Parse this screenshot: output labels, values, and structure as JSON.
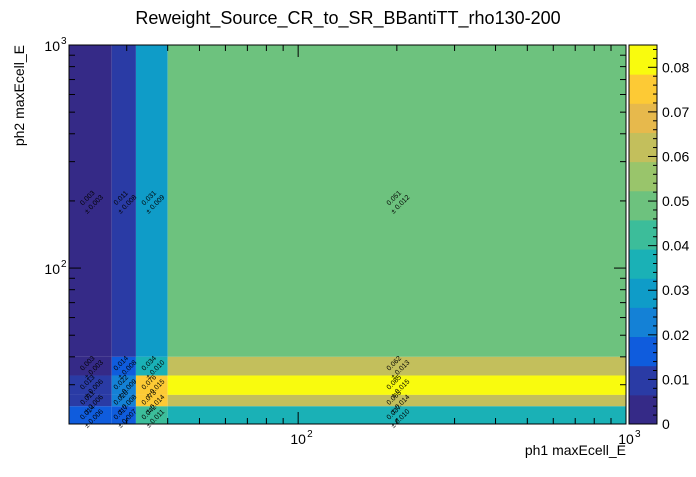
{
  "chart_data": {
    "type": "heatmap",
    "title": "Reweight_Source_CR_to_SR_BBantiTT_rho130-200",
    "xlabel": "ph1 maxEcell_E",
    "ylabel": "ph2 maxEcell_E",
    "x_scale": "log",
    "y_scale": "log",
    "xlim": [
      20,
      1000
    ],
    "ylim": [
      20,
      1000
    ],
    "x_major_ticks": [
      100,
      1000
    ],
    "x_major_tick_labels": [
      "10",
      "10"
    ],
    "x_major_tick_exponents": [
      "2",
      "3"
    ],
    "y_major_ticks": [
      100,
      1000
    ],
    "y_major_tick_labels": [
      "10",
      "10"
    ],
    "y_major_tick_exponents": [
      "2",
      "3"
    ],
    "x_bin_edges": [
      20,
      27,
      32,
      40,
      1000
    ],
    "y_bin_edges": [
      20,
      24,
      27,
      33,
      40,
      1000
    ],
    "zlim": [
      0,
      0.085
    ],
    "colorbar_ticks": [
      0,
      0.01,
      0.02,
      0.03,
      0.04,
      0.05,
      0.06,
      0.07,
      0.08
    ],
    "colorbar_tick_labels": [
      "0",
      "0.01",
      "0.02",
      "0.03",
      "0.04",
      "0.05",
      "0.06",
      "0.07",
      "0.08"
    ],
    "cells": [
      {
        "x": [
          20,
          27
        ],
        "y": [
          40,
          1000
        ],
        "value": 0.003,
        "label": "0.003",
        "error": "± 0.003"
      },
      {
        "x": [
          27,
          32
        ],
        "y": [
          40,
          1000
        ],
        "value": 0.011,
        "label": "0.011",
        "error": "± 0.008"
      },
      {
        "x": [
          32,
          40
        ],
        "y": [
          40,
          1000
        ],
        "value": 0.031,
        "label": "0.031",
        "error": "± 0.009"
      },
      {
        "x": [
          40,
          1000
        ],
        "y": [
          40,
          1000
        ],
        "value": 0.051,
        "label": "0.051",
        "error": "± 0.012"
      },
      {
        "x": [
          20,
          27
        ],
        "y": [
          33,
          40
        ],
        "value": 0.003,
        "label": "0.003",
        "error": "± 0.003"
      },
      {
        "x": [
          27,
          32
        ],
        "y": [
          33,
          40
        ],
        "value": 0.014,
        "label": "0.014",
        "error": "± 0.008"
      },
      {
        "x": [
          32,
          40
        ],
        "y": [
          33,
          40
        ],
        "value": 0.034,
        "label": "0.034",
        "error": "± 0.010"
      },
      {
        "x": [
          40,
          1000
        ],
        "y": [
          33,
          40
        ],
        "value": 0.062,
        "label": "0.062",
        "error": "± 0.013"
      },
      {
        "x": [
          20,
          27
        ],
        "y": [
          27,
          33
        ],
        "value": 0.013,
        "label": "0.013",
        "error": "± 0.006"
      },
      {
        "x": [
          27,
          32
        ],
        "y": [
          27,
          33
        ],
        "value": 0.022,
        "label": "0.022",
        "error": "± 0.009"
      },
      {
        "x": [
          32,
          40
        ],
        "y": [
          27,
          33
        ],
        "value": 0.076,
        "label": "0.076",
        "error": "± 0.015"
      },
      {
        "x": [
          40,
          1000
        ],
        "y": [
          27,
          33
        ],
        "value": 0.085,
        "label": "0.085",
        "error": "± 0.015"
      },
      {
        "x": [
          20,
          27
        ],
        "y": [
          24,
          27
        ],
        "value": 0.011,
        "label": "0.011",
        "error": "± 0.006"
      },
      {
        "x": [
          27,
          32
        ],
        "y": [
          24,
          27
        ],
        "value": 0.02,
        "label": "0.020",
        "error": "± 0.008"
      },
      {
        "x": [
          32,
          40
        ],
        "y": [
          24,
          27
        ],
        "value": 0.073,
        "label": "0.073",
        "error": "± 0.014"
      },
      {
        "x": [
          40,
          1000
        ],
        "y": [
          24,
          27
        ],
        "value": 0.065,
        "label": "0.065",
        "error": "± 0.014"
      },
      {
        "x": [
          20,
          27
        ],
        "y": [
          20,
          24
        ],
        "value": 0.014,
        "label": "0.014",
        "error": "± 0.006"
      },
      {
        "x": [
          27,
          32
        ],
        "y": [
          20,
          24
        ],
        "value": 0.017,
        "label": "0.017",
        "error": "± 0.007"
      },
      {
        "x": [
          32,
          40
        ],
        "y": [
          20,
          24
        ],
        "value": 0.042,
        "label": "0.042",
        "error": "± 0.011"
      },
      {
        "x": [
          40,
          1000
        ],
        "y": [
          20,
          24
        ],
        "value": 0.037,
        "label": "0.037",
        "error": "± 0.010"
      }
    ],
    "colorscale": [
      "#352a87",
      "#2a3ba5",
      "#0f5cdd",
      "#1481d6",
      "#0f9cc8",
      "#1ab1b6",
      "#3cbd9a",
      "#6dc27e",
      "#99c56b",
      "#c3bf5c",
      "#e7b94c",
      "#fdca35",
      "#f9fb0e"
    ],
    "grid": false,
    "legend": "colorbar-right"
  }
}
